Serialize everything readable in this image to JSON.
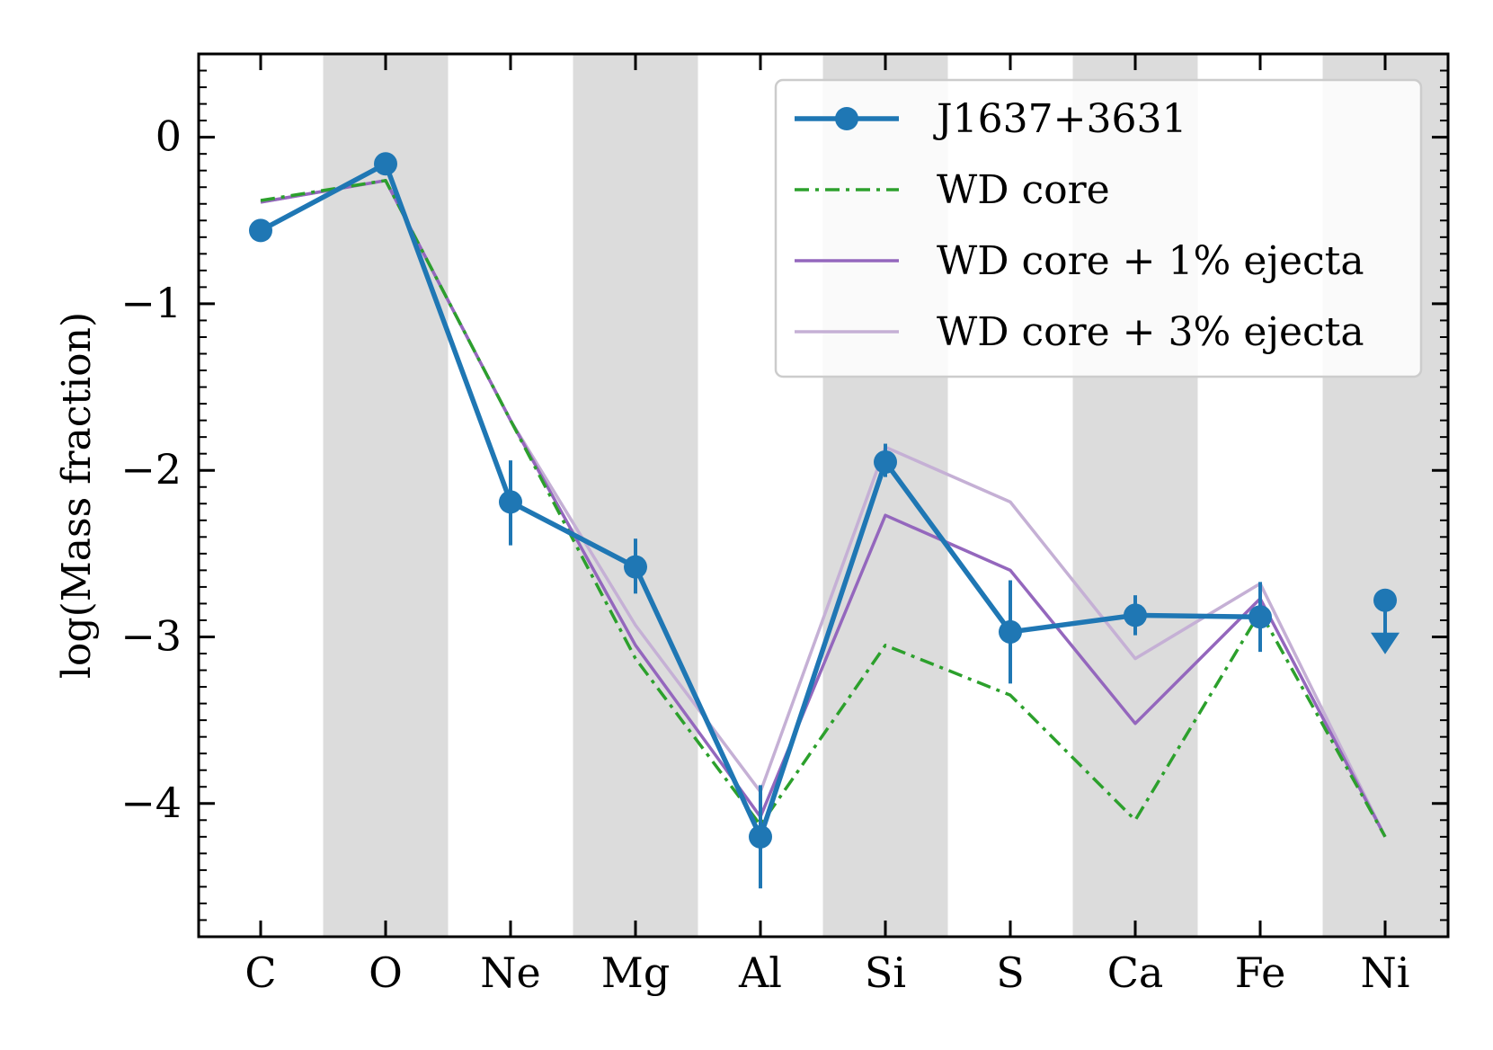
{
  "chart_data": {
    "type": "line",
    "title": "",
    "xlabel": "",
    "ylabel": "log(Mass fraction)",
    "categories": [
      "C",
      "O",
      "Ne",
      "Mg",
      "Al",
      "Si",
      "S",
      "Ca",
      "Fe",
      "Ni"
    ],
    "ylim": [
      -4.8,
      0.5
    ],
    "yticks": [
      0,
      -1,
      -2,
      -3,
      -4
    ],
    "ytick_labels": [
      "0",
      "−1",
      "−2",
      "−3",
      "−4"
    ],
    "shaded_categories": [
      "O",
      "Mg",
      "Si",
      "Ca",
      "Ni"
    ],
    "legend_position": "top-right",
    "series": [
      {
        "name": "J1637+3631",
        "color": "#1f77b4",
        "style": "solid-markers",
        "values": [
          -0.56,
          -0.16,
          -2.19,
          -2.58,
          -4.2,
          -1.95,
          -2.97,
          -2.87,
          -2.88,
          null
        ],
        "err_low": [
          null,
          null,
          0.26,
          0.16,
          0.31,
          0.09,
          0.31,
          0.12,
          0.21,
          null
        ],
        "err_high": [
          null,
          null,
          0.25,
          0.17,
          0.31,
          0.11,
          0.31,
          0.12,
          0.21,
          null
        ],
        "upper_limit": {
          "category": "Ni",
          "value": -2.78
        }
      },
      {
        "name": "WD core",
        "color": "#2ca02c",
        "style": "dashdot",
        "values": [
          -0.38,
          -0.26,
          -1.7,
          -3.13,
          -4.13,
          -3.05,
          -3.35,
          -4.1,
          -2.85,
          -4.2
        ]
      },
      {
        "name": "WD core + 1% ejecta",
        "color": "#9467bd",
        "style": "solid",
        "values": [
          -0.39,
          -0.26,
          -1.7,
          -3.05,
          -4.08,
          -2.27,
          -2.6,
          -3.52,
          -2.77,
          -4.2
        ]
      },
      {
        "name": "WD core + 3% ejecta",
        "color": "#c5b0d5",
        "style": "solid",
        "values": [
          -0.39,
          -0.26,
          -1.7,
          -2.93,
          -3.93,
          -1.86,
          -2.19,
          -3.13,
          -2.68,
          -4.2
        ]
      }
    ]
  }
}
